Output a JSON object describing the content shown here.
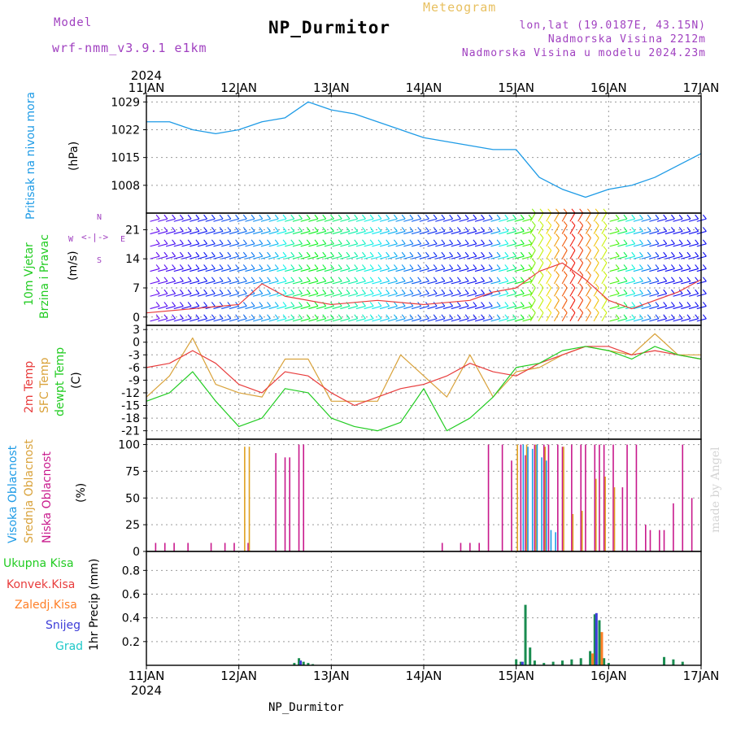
{
  "header": {
    "model_label": "Model",
    "model_value": "wrf-nmm_v3.9.1  e1km",
    "title": "NP_Durmitor",
    "subtitle": "Meteogram",
    "coords": "lon,lat (19.0187E, 43.15N)",
    "elevation": "Nadmorska Visina 2212m",
    "model_elevation": "Nadmorska Visina u modelu 2024.23m",
    "footer_station": "NP_Durmitor",
    "watermark": "made by Angel"
  },
  "colors": {
    "pressure": "#1e9be6",
    "temp2m": "#e83c3c",
    "sfc": "#d9a23a",
    "dewpt": "#22cc22",
    "low_cloud": "#c8198c",
    "mid_cloud": "#e0a020",
    "high_cloud": "#1e9be6",
    "total_precip": "#1a8c50",
    "convective": "#e83c3c",
    "freezing": "#ff7f27",
    "snow": "#3c3cd8",
    "graupel": "#1ec8c8",
    "model": "#a040c0"
  },
  "chart_data": [
    {
      "type": "line",
      "panel": "pressure",
      "ylabel_a": "Pritisak na nivou mora",
      "ylabel_b": "(hPa)",
      "x_ticks": [
        "11JAN",
        "12JAN",
        "13JAN",
        "14JAN",
        "15JAN",
        "16JAN",
        "17JAN"
      ],
      "x_year": "2024",
      "ylim": [
        1001,
        1030.5
      ],
      "yticks": [
        1008,
        1015,
        1022,
        1029
      ],
      "series": [
        {
          "x": [
            0,
            0.25,
            0.5,
            0.75,
            1.0,
            1.25,
            1.5,
            1.75,
            2.0,
            2.25,
            2.5,
            2.75,
            3.0,
            3.25,
            3.5,
            3.75,
            4.0,
            4.25,
            4.5,
            4.75,
            5.0,
            5.25,
            5.5,
            5.75,
            6.0
          ],
          "y": [
            1024,
            1024,
            1022,
            1021,
            1022,
            1024,
            1025,
            1029,
            1027,
            1026,
            1024,
            1022,
            1020,
            1019,
            1018,
            1017,
            1017,
            1010,
            1007,
            1005,
            1007,
            1008,
            1010,
            1013,
            1016
          ]
        }
      ]
    },
    {
      "type": "barbs",
      "panel": "wind",
      "ylabel_a": "10m Vjetar",
      "ylabel_b": "Brzina i Pravac",
      "ylabel_c": "(m/s)",
      "compass": {
        "n": "N",
        "s": "S",
        "e": "E",
        "w": "W"
      },
      "ylim": [
        -2,
        25
      ],
      "yticks": [
        0,
        7,
        14,
        21
      ],
      "speed": {
        "x": [
          0,
          0.5,
          1.0,
          1.25,
          1.5,
          2.0,
          2.5,
          3.0,
          3.5,
          3.75,
          4.0,
          4.25,
          4.5,
          4.75,
          5.0,
          5.25,
          5.5,
          5.75,
          6.0
        ],
        "y": [
          1,
          2,
          3,
          8,
          5,
          3,
          4,
          3,
          4,
          6,
          7,
          11,
          13,
          9,
          4,
          2,
          4,
          6,
          9
        ]
      }
    },
    {
      "type": "line",
      "panel": "temperature",
      "ylabel_a": "2m Temp",
      "ylabel_b": "SFC Temp",
      "ylabel_c": "dewpt Temp",
      "ylabel_d": "(C)",
      "ylim": [
        -23,
        4
      ],
      "yticks": [
        3,
        0,
        -3,
        -6,
        -9,
        -12,
        -15,
        -18,
        -21
      ],
      "series": [
        {
          "name": "2m Temp",
          "x": [
            0,
            0.25,
            0.5,
            0.75,
            1.0,
            1.25,
            1.5,
            1.75,
            2.0,
            2.25,
            2.5,
            2.75,
            3.0,
            3.25,
            3.5,
            3.75,
            4.0,
            4.25,
            4.5,
            4.75,
            5.0,
            5.25,
            5.5,
            5.75,
            6.0
          ],
          "y": [
            -6,
            -5,
            -2,
            -5,
            -10,
            -12,
            -7,
            -8,
            -12,
            -15,
            -13,
            -11,
            -10,
            -8,
            -5,
            -7,
            -8,
            -5,
            -3,
            -1,
            -1,
            -3,
            -2,
            -3,
            -4
          ]
        },
        {
          "name": "SFC Temp",
          "x": [
            0,
            0.25,
            0.5,
            0.75,
            1.0,
            1.25,
            1.5,
            1.75,
            2.0,
            2.25,
            2.5,
            2.75,
            3.0,
            3.25,
            3.5,
            3.75,
            4.0,
            4.25,
            4.5,
            4.75,
            5.0,
            5.25,
            5.5,
            5.75,
            6.0
          ],
          "y": [
            -13,
            -8,
            1,
            -10,
            -12,
            -13,
            -4,
            -4,
            -14,
            -14,
            -14,
            -3,
            -8,
            -13,
            -3,
            -13,
            -7,
            -6,
            -3,
            -1,
            -2,
            -3,
            2,
            -3,
            -3
          ]
        },
        {
          "name": "dewpt Temp",
          "x": [
            0,
            0.25,
            0.5,
            0.75,
            1.0,
            1.25,
            1.5,
            1.75,
            2.0,
            2.25,
            2.5,
            2.75,
            3.0,
            3.25,
            3.5,
            3.75,
            4.0,
            4.25,
            4.5,
            4.75,
            5.0,
            5.25,
            5.5,
            5.75,
            6.0
          ],
          "y": [
            -14,
            -12,
            -7,
            -14,
            -20,
            -18,
            -11,
            -12,
            -18,
            -20,
            -21,
            -19,
            -11,
            -21,
            -18,
            -13,
            -6,
            -5,
            -2,
            -1,
            -2,
            -4,
            -1,
            -3,
            -4
          ]
        }
      ]
    },
    {
      "type": "bar",
      "panel": "clouds",
      "ylabel_a": "Visoka Oblacnost",
      "ylabel_b": "Srednja Oblacnost",
      "ylabel_c": "Niska Oblacnost",
      "ylabel_d": "(%)",
      "ylim": [
        0,
        105
      ],
      "yticks": [
        0,
        25,
        50,
        75,
        100
      ],
      "series": [
        {
          "name": "Niska Oblacnost",
          "x": [
            0.1,
            0.2,
            0.3,
            0.45,
            0.7,
            0.85,
            0.95,
            1.1,
            1.4,
            1.5,
            1.55,
            1.65,
            1.7,
            3.2,
            3.4,
            3.5,
            3.6,
            3.7,
            3.85,
            3.95,
            4.05,
            4.1,
            4.2,
            4.3,
            4.35,
            4.45,
            4.5,
            4.6,
            4.7,
            4.75,
            4.85,
            4.9,
            4.95,
            5.05,
            5.15,
            5.2,
            5.3,
            5.4,
            5.45,
            5.55,
            5.6,
            5.7,
            5.8,
            5.9
          ],
          "y": [
            8,
            8,
            8,
            8,
            8,
            8,
            8,
            8,
            92,
            88,
            88,
            100,
            100,
            8,
            8,
            8,
            8,
            100,
            100,
            85,
            100,
            90,
            100,
            100,
            100,
            100,
            98,
            100,
            100,
            100,
            100,
            100,
            100,
            100,
            60,
            100,
            100,
            25,
            20,
            20,
            20,
            45,
            100,
            50
          ]
        },
        {
          "name": "Srednja Oblacnost",
          "x": [
            1.05,
            1.1,
            4.0,
            4.1,
            4.2,
            4.3,
            4.5,
            4.6,
            4.7,
            4.85,
            4.95,
            5.05
          ],
          "y": [
            98,
            98,
            100,
            100,
            100,
            98,
            98,
            35,
            38,
            68,
            70,
            60
          ]
        },
        {
          "name": "Visoka Oblacnost",
          "x": [
            4.05,
            4.1,
            4.15,
            4.2,
            4.25,
            4.3,
            4.35,
            4.4
          ],
          "y": [
            100,
            98,
            96,
            100,
            88,
            85,
            20,
            18
          ]
        }
      ]
    },
    {
      "type": "bar",
      "panel": "precip",
      "legend": [
        "Ukupna Kisa",
        "Konvek.Kisa",
        "Zaledj.Kisa",
        "Snijeg",
        "Grad"
      ],
      "ylabel": "1hr Precip (mm)",
      "ylim": [
        0,
        0.96
      ],
      "yticks": [
        0.2,
        0.4,
        0.6,
        0.8
      ],
      "series": [
        {
          "name": "Ukupna Kisa",
          "x": [
            1.6,
            1.65,
            1.7,
            1.75,
            1.8,
            4.0,
            4.05,
            4.1,
            4.15,
            4.2,
            4.3,
            4.4,
            4.5,
            4.6,
            4.7,
            4.8,
            4.85,
            4.9,
            4.95,
            5.0,
            5.6,
            5.7,
            5.8
          ],
          "y": [
            0.02,
            0.06,
            0.03,
            0.02,
            0.01,
            0.05,
            0.03,
            0.51,
            0.15,
            0.04,
            0.02,
            0.03,
            0.04,
            0.05,
            0.06,
            0.12,
            0.43,
            0.38,
            0.06,
            0.02,
            0.07,
            0.05,
            0.03
          ]
        },
        {
          "name": "Snijeg",
          "x": [
            1.65,
            4.05,
            4.85
          ],
          "y": [
            0.04,
            0.03,
            0.44
          ]
        },
        {
          "name": "Zaledj.Kisa",
          "x": [
            4.8,
            4.9
          ],
          "y": [
            0.1,
            0.28
          ]
        }
      ]
    }
  ]
}
